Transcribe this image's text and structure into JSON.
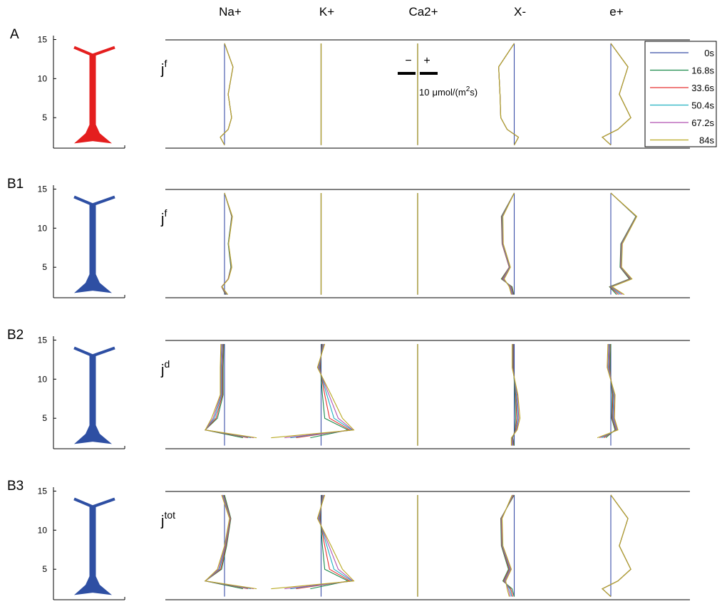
{
  "columns": [
    "Na+",
    "K+",
    "Ca2+",
    "X-",
    "e+"
  ],
  "depths": [
    1.5,
    2.5,
    3.5,
    5,
    8,
    11.5,
    14.5
  ],
  "ylim": [
    1.1,
    15.5
  ],
  "yticks": [
    5,
    10,
    15
  ],
  "legend": [
    {
      "name": "0s",
      "color": "#3b4fa8"
    },
    {
      "name": "16.8s",
      "color": "#1a8a4a"
    },
    {
      "name": "33.6s",
      "color": "#e83030"
    },
    {
      "name": "50.4s",
      "color": "#20b0c0"
    },
    {
      "name": "67.2s",
      "color": "#b050b0"
    },
    {
      "name": "84s",
      "color": "#b8a820"
    }
  ],
  "scale_bar": {
    "minus": "−",
    "plus": "+",
    "value": 10,
    "unit": "μmol/(m",
    "unit_sup": "2",
    "unit_end": "s)"
  },
  "rows": [
    {
      "label": "A",
      "neuron_color": "#e41e1e",
      "flux": "j",
      "flux_sup": "f",
      "panels": [
        [
          [
            0,
            0,
            0,
            0,
            0,
            0,
            0
          ],
          [
            0,
            -2.2,
            1.9,
            3.7,
            1.9,
            4.4,
            0
          ],
          [
            0,
            -2.2,
            1.9,
            3.7,
            1.9,
            4.4,
            0
          ],
          [
            0,
            -2.2,
            1.9,
            3.7,
            1.9,
            4.4,
            0
          ],
          [
            0,
            -2.2,
            1.9,
            3.7,
            1.9,
            4.4,
            0
          ],
          [
            0,
            -2.2,
            1.9,
            3.7,
            1.9,
            4.4,
            0
          ]
        ],
        [
          [
            0,
            0,
            0,
            0,
            0,
            0,
            0
          ],
          [
            0,
            0,
            0,
            0,
            0,
            0,
            0
          ],
          [
            0,
            0,
            0,
            0,
            0,
            0,
            0
          ],
          [
            0,
            0,
            0,
            0,
            0,
            0,
            0
          ],
          [
            0,
            0,
            0,
            0,
            0,
            0,
            0
          ],
          [
            0,
            0,
            0,
            0,
            0,
            0,
            0
          ]
        ],
        [
          [
            0,
            0,
            0,
            0,
            0,
            0,
            0
          ],
          [
            0,
            0,
            0,
            0,
            0,
            0,
            0
          ],
          [
            0,
            0,
            0,
            0,
            0,
            0,
            0
          ],
          [
            0,
            0,
            0,
            0,
            0,
            0,
            0
          ],
          [
            0,
            0,
            0,
            0,
            0,
            0,
            0
          ],
          [
            0,
            0,
            0,
            0,
            0,
            0,
            0
          ]
        ],
        [
          [
            0,
            0,
            0,
            0,
            0,
            0,
            0
          ],
          [
            0,
            2.2,
            -3.7,
            -7,
            -7.4,
            -8.1,
            0
          ],
          [
            0,
            2.2,
            -3.7,
            -7,
            -7.4,
            -8.1,
            0
          ],
          [
            0,
            2.2,
            -3.7,
            -7,
            -7.4,
            -8.1,
            0
          ],
          [
            0,
            2.2,
            -3.7,
            -7,
            -7.4,
            -8.1,
            0
          ],
          [
            0,
            2.2,
            -3.7,
            -7,
            -7.4,
            -8.1,
            0
          ]
        ],
        [
          [
            0,
            0,
            0,
            0,
            0,
            0,
            0
          ],
          [
            0,
            -4.4,
            3.7,
            10.4,
            4.4,
            8.9,
            0
          ],
          [
            0,
            -4.4,
            3.7,
            10.4,
            4.4,
            8.9,
            0
          ],
          [
            0,
            -4.4,
            3.7,
            10.4,
            4.4,
            8.9,
            0
          ],
          [
            0,
            -4.4,
            3.7,
            10.4,
            4.4,
            8.9,
            0
          ],
          [
            0,
            -4.4,
            3.7,
            10.4,
            4.4,
            8.9,
            0
          ]
        ]
      ]
    },
    {
      "label": "B1",
      "neuron_color": "#2e4fa3",
      "flux": "j",
      "flux_sup": "f",
      "panels": [
        [
          [
            0,
            0,
            0,
            0,
            0,
            0,
            0
          ],
          [
            0.5,
            -1.5,
            1.9,
            3.3,
            1.9,
            3.7,
            0
          ],
          [
            0.8,
            -1.5,
            1.9,
            3.5,
            2,
            3.8,
            0
          ],
          [
            1.1,
            -1.4,
            2,
            3.6,
            2,
            3.9,
            0
          ],
          [
            1.4,
            -1.4,
            2,
            3.7,
            2.1,
            4,
            0
          ],
          [
            1.7,
            -1.3,
            2.1,
            3.8,
            2.1,
            4.1,
            0
          ]
        ],
        [
          [
            0,
            0,
            0,
            0,
            0,
            0,
            0
          ],
          [
            0,
            0,
            0,
            0,
            0,
            0,
            0
          ],
          [
            0,
            0,
            0,
            0,
            0,
            0,
            0
          ],
          [
            0,
            0,
            0,
            0,
            0,
            0,
            0
          ],
          [
            0,
            0,
            0,
            0,
            0,
            0,
            0
          ],
          [
            0,
            0,
            0,
            0,
            0,
            0,
            0
          ]
        ],
        [
          [
            0,
            0,
            0,
            0,
            0,
            0,
            0
          ],
          [
            0,
            0,
            0,
            0,
            0,
            0,
            0
          ],
          [
            0,
            0,
            0,
            0,
            0,
            0,
            0
          ],
          [
            0,
            0,
            0,
            0,
            0,
            0,
            0
          ],
          [
            0,
            0,
            0,
            0,
            0,
            0,
            0
          ],
          [
            0,
            0,
            0,
            0,
            0,
            0,
            0
          ]
        ],
        [
          [
            0,
            0,
            0,
            0,
            0,
            0,
            0
          ],
          [
            -0.2,
            -1.1,
            -6.7,
            -2.6,
            -6.3,
            -6.7,
            0
          ],
          [
            -0.5,
            -1.5,
            -6.3,
            -2.6,
            -6.3,
            -6.5,
            0
          ],
          [
            -0.8,
            -1.9,
            -5.9,
            -2.4,
            -6.1,
            -6.3,
            0
          ],
          [
            -1.1,
            -2.2,
            -5.6,
            -2.2,
            -5.9,
            -6.1,
            0
          ],
          [
            -1.5,
            -2.6,
            -5.2,
            -2,
            -5.7,
            -5.9,
            0
          ]
        ],
        [
          [
            0,
            0,
            0,
            0,
            0,
            0,
            0
          ],
          [
            3,
            -0.7,
            9.6,
            4.8,
            5.2,
            13,
            0
          ],
          [
            4,
            -0.4,
            10,
            5,
            5.4,
            13.2,
            0
          ],
          [
            5,
            0,
            10.4,
            5.2,
            5.6,
            13.3,
            0
          ],
          [
            6,
            0.4,
            10.7,
            5.4,
            5.8,
            13.4,
            0
          ],
          [
            7,
            0.7,
            11,
            5.6,
            6,
            13.5,
            0
          ]
        ]
      ]
    },
    {
      "label": "B2",
      "neuron_color": "#2e4fa3",
      "flux": "j",
      "flux_sup": "d",
      "panels": [
        [
          [
            0,
            0,
            0,
            0,
            0,
            0,
            0
          ],
          [
            null,
            9.6,
            -10,
            -3.7,
            -0.7,
            -0.7,
            -0.4
          ],
          [
            null,
            12.2,
            -10,
            -4.4,
            -1.1,
            -1.1,
            -0.7
          ],
          [
            null,
            13.7,
            -10,
            -5.2,
            -1.5,
            -1.5,
            -1.1
          ],
          [
            null,
            15.2,
            -10,
            -5.9,
            -1.9,
            -1.9,
            -1.5
          ],
          [
            null,
            16.7,
            -10,
            -6.7,
            -2.2,
            -2.2,
            -1.9
          ]
        ],
        [
          [
            0,
            0,
            0,
            0,
            0,
            0,
            0
          ],
          [
            null,
            -5.6,
            14,
            1.9,
            0.7,
            -0.4,
            0.4
          ],
          [
            null,
            -13,
            15,
            4.4,
            1.9,
            -0.7,
            0.7
          ],
          [
            null,
            -16,
            16,
            6.7,
            3,
            -1.1,
            1.1
          ],
          [
            null,
            -19,
            16.5,
            8.9,
            4.1,
            -1.5,
            1.5
          ],
          [
            null,
            -26,
            17,
            11.1,
            5.2,
            -1.9,
            1.9
          ]
        ],
        [
          [
            0,
            0,
            0,
            0,
            0,
            0,
            0
          ],
          [
            0,
            0,
            0,
            0,
            0,
            0,
            0
          ],
          [
            0,
            0,
            0,
            0,
            0,
            0,
            0
          ],
          [
            0,
            0,
            0,
            0,
            0,
            0,
            0
          ],
          [
            0,
            0,
            0,
            0,
            0,
            0,
            0
          ],
          [
            0,
            0,
            0,
            0,
            0,
            0,
            0
          ]
        ],
        [
          [
            0,
            0,
            0,
            0,
            0,
            0,
            0
          ],
          [
            0,
            -0.7,
            0.4,
            0.7,
            0.4,
            -0.4,
            -0.4
          ],
          [
            -0.4,
            -0.9,
            0.7,
            1.3,
            0.8,
            -0.6,
            -0.6
          ],
          [
            -0.8,
            -1.1,
            1,
            1.9,
            1.1,
            -0.8,
            -0.8
          ],
          [
            -1.1,
            -1.3,
            1.2,
            2.4,
            1.5,
            -0.9,
            -0.9
          ],
          [
            -1.5,
            -1.5,
            1.5,
            3,
            1.9,
            -1.1,
            -1.1
          ]
        ],
        [
          [
            0,
            0,
            0,
            0,
            0,
            0,
            0
          ],
          [
            null,
            -2.6,
            2.2,
            0.4,
            0.7,
            -0.4,
            0
          ],
          [
            null,
            -3.7,
            2.6,
            0.7,
            1.1,
            -0.7,
            -0.4
          ],
          [
            null,
            -4.8,
            3,
            1.1,
            1.5,
            -1.1,
            -0.7
          ],
          [
            null,
            -5.9,
            3.3,
            1.5,
            1.9,
            -1.5,
            -1.1
          ],
          [
            null,
            -7,
            3.7,
            1.9,
            2.2,
            -1.9,
            -1.5
          ]
        ]
      ]
    },
    {
      "label": "B3",
      "neuron_color": "#2e4fa3",
      "flux": "j",
      "flux_sup": "tot",
      "panels": [
        [
          [
            0,
            0,
            0,
            0,
            0,
            0,
            0
          ],
          [
            null,
            9.6,
            -10,
            -1.5,
            1.1,
            3.3,
            0
          ],
          [
            null,
            12.2,
            -10,
            -2,
            0.8,
            3.1,
            -0.4
          ],
          [
            null,
            13.7,
            -10,
            -2.6,
            0.5,
            2.9,
            -0.7
          ],
          [
            null,
            15.2,
            -10,
            -3.1,
            0.3,
            2.8,
            -1.1
          ],
          [
            null,
            16.7,
            -10,
            -3.7,
            0,
            2.6,
            -1.5
          ]
        ],
        [
          [
            0,
            0,
            0,
            0,
            0,
            0,
            0
          ],
          [
            null,
            -5.6,
            14,
            1.9,
            0.7,
            -0.4,
            0.4
          ],
          [
            null,
            -13,
            15,
            4.4,
            1.9,
            -0.7,
            0.7
          ],
          [
            null,
            -16,
            16,
            6.7,
            3,
            -1.1,
            1.1
          ],
          [
            null,
            -19,
            16.5,
            8.9,
            4.1,
            -1.5,
            1.5
          ],
          [
            null,
            -26,
            17,
            11.1,
            5.2,
            -1.9,
            1.9
          ]
        ],
        [
          [
            0,
            0,
            0,
            0,
            0,
            0,
            0
          ],
          [
            0,
            0,
            0,
            0,
            0,
            0,
            0
          ],
          [
            0,
            0,
            0,
            0,
            0,
            0,
            0
          ],
          [
            0,
            0,
            0,
            0,
            0,
            0,
            0
          ],
          [
            0,
            0,
            0,
            0,
            0,
            0,
            0
          ],
          [
            0,
            0,
            0,
            0,
            0,
            0,
            0
          ]
        ],
        [
          [
            0,
            0,
            0,
            0,
            0,
            0,
            0
          ],
          [
            0,
            -1.1,
            -5.9,
            -3,
            -6.7,
            -7,
            0
          ],
          [
            -0.7,
            -1.8,
            -5.5,
            -2.6,
            -6.5,
            -6.8,
            -0.3
          ],
          [
            -1.3,
            -2.4,
            -5.1,
            -2.2,
            -6.3,
            -6.6,
            -0.6
          ],
          [
            -2,
            -3.1,
            -4.8,
            -1.9,
            -6.1,
            -6.5,
            -0.8
          ],
          [
            -2.6,
            -3.7,
            -4.4,
            -1.5,
            -5.9,
            -6.3,
            -1.1
          ]
        ],
        [
          [
            0,
            0,
            0,
            0,
            0,
            0,
            0
          ],
          [
            0,
            -4.4,
            3.7,
            10.4,
            4.4,
            8.9,
            0
          ],
          [
            0,
            -4.4,
            3.7,
            10.4,
            4.4,
            8.9,
            0
          ],
          [
            0,
            -4.4,
            3.7,
            10.4,
            4.4,
            8.9,
            0
          ],
          [
            0,
            -4.4,
            3.7,
            10.4,
            4.4,
            8.9,
            0
          ],
          [
            0,
            -4.4,
            3.7,
            10.4,
            4.4,
            8.9,
            0
          ]
        ]
      ]
    }
  ]
}
